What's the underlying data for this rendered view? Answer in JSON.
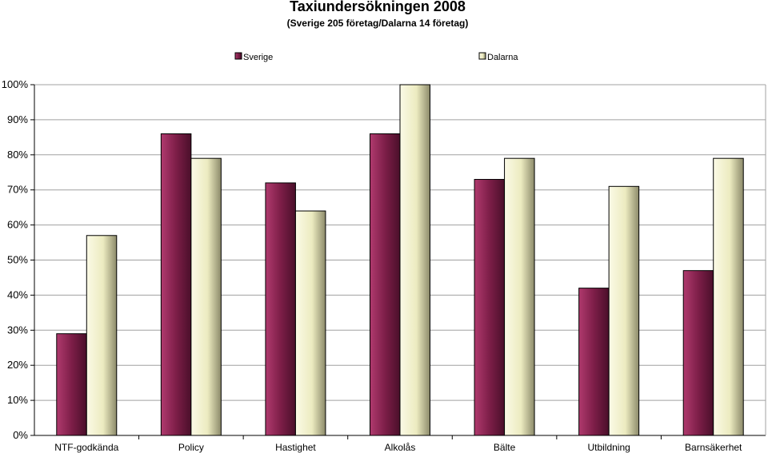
{
  "chart_data": {
    "type": "bar",
    "title": "Taxiundersökningen 2008",
    "subtitle": "(Sverige 205 företag/Dalarna 14 företag)",
    "categories": [
      "NTF-godkända",
      "Policy",
      "Hastighet",
      "Alkolås",
      "Bälte",
      "Utbildning",
      "Barnsäkerhet"
    ],
    "series": [
      {
        "name": "Sverige",
        "values": [
          29,
          86,
          72,
          86,
          73,
          42,
          47
        ],
        "color": "#8b2252"
      },
      {
        "name": "Dalarna",
        "values": [
          57,
          79,
          64,
          100,
          79,
          71,
          79
        ],
        "color": "#f2efc4"
      }
    ],
    "ylim": [
      0,
      100
    ],
    "yticks": [
      "0%",
      "10%",
      "20%",
      "30%",
      "40%",
      "50%",
      "60%",
      "70%",
      "80%",
      "90%",
      "100%"
    ],
    "grid": true,
    "legend_position": "top"
  }
}
